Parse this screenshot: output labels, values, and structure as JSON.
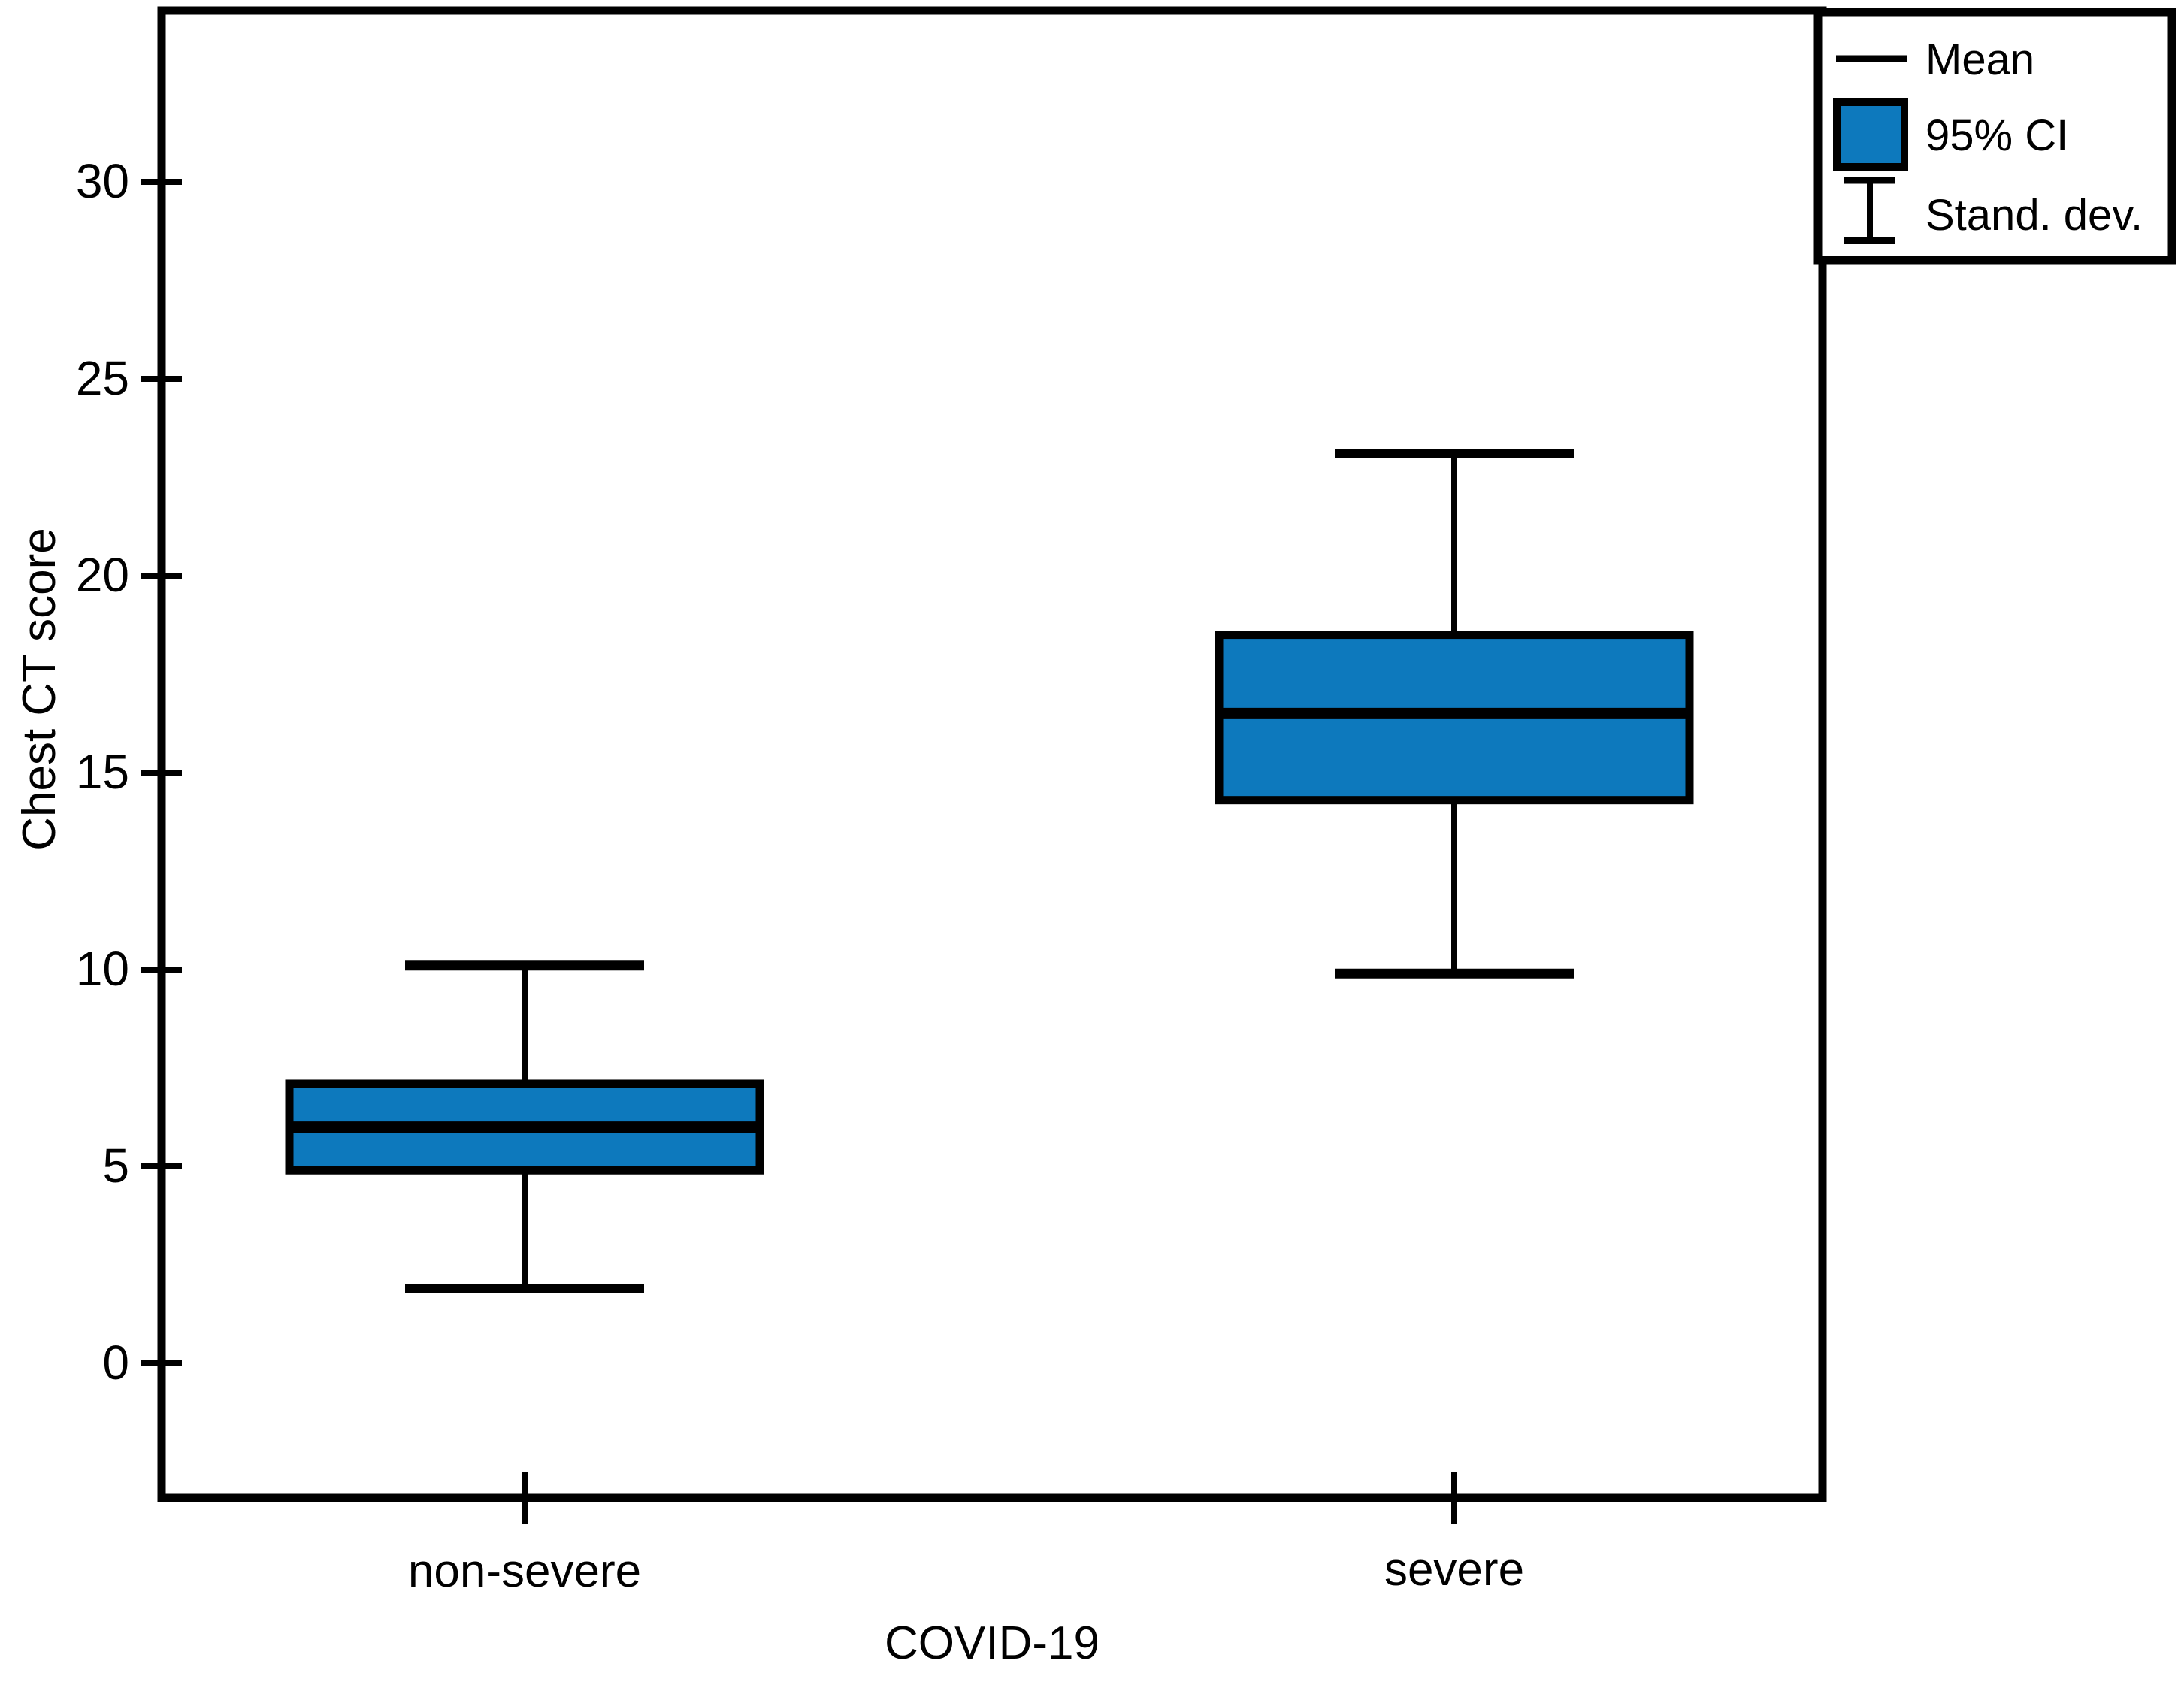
{
  "figure": {
    "background": "#ffffff"
  },
  "chart_data": {
    "type": "box",
    "variant": "mean-95ci-sd-boxplot",
    "title": "",
    "xlabel": "COVID-19",
    "ylabel": "Chest CT score",
    "categories": [
      "non-severe",
      "severe"
    ],
    "yticks": [
      0,
      5,
      10,
      15,
      20,
      25,
      30
    ],
    "ylim": [
      -3.4,
      34.4
    ],
    "grid": false,
    "series": [
      {
        "category": "non-severe",
        "mean": 6.0,
        "ci95_low": 4.9,
        "ci95_high": 7.1,
        "sd": 4.1,
        "whisker_low": 1.9,
        "whisker_high": 10.1
      },
      {
        "category": "severe",
        "mean": 16.5,
        "ci95_low": 14.3,
        "ci95_high": 18.5,
        "sd": 6.6,
        "whisker_low": 9.9,
        "whisker_high": 23.1
      }
    ],
    "legend": {
      "position": "top-right",
      "items": [
        {
          "symbol": "mean-line",
          "label": "Mean"
        },
        {
          "symbol": "ci-box",
          "label": "95% CI"
        },
        {
          "symbol": "error-bar",
          "label": "Stand. dev."
        }
      ]
    },
    "colors": {
      "box_fill": "#0d79bd",
      "stroke": "#000000",
      "background": "#ffffff"
    }
  }
}
